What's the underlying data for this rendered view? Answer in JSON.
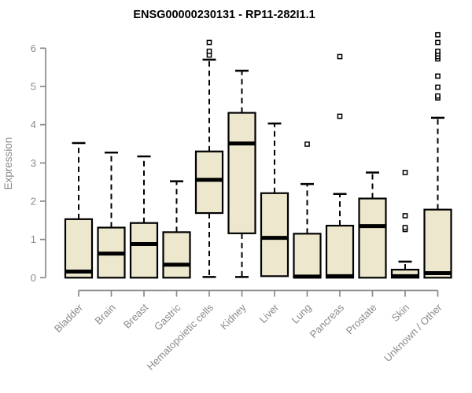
{
  "chart_data": {
    "type": "boxplot",
    "title": "ENSG00000230131 - RP11-282I1.1",
    "ylabel": "Expression",
    "xlabel": "",
    "ylim": [
      0,
      6
    ],
    "yticks": [
      0,
      1,
      2,
      3,
      4,
      5,
      6
    ],
    "grid": false,
    "legend": "none",
    "categories": [
      "Bladder",
      "Brain",
      "Breast",
      "Gastric",
      "Hematopoietic cells",
      "Kidney",
      "Liver",
      "Lung",
      "Pancreas",
      "Prostate",
      "Skin",
      "Unknown / Other"
    ],
    "boxes": [
      {
        "category": "Bladder",
        "whisker_low": 0.0,
        "q1": 0.0,
        "median": 0.16,
        "q3": 1.53,
        "whisker_high": 3.52,
        "outliers": []
      },
      {
        "category": "Brain",
        "whisker_low": 0.0,
        "q1": 0.0,
        "median": 0.63,
        "q3": 1.31,
        "whisker_high": 3.27,
        "outliers": []
      },
      {
        "category": "Breast",
        "whisker_low": 0.0,
        "q1": 0.0,
        "median": 0.88,
        "q3": 1.43,
        "whisker_high": 3.17,
        "outliers": []
      },
      {
        "category": "Gastric",
        "whisker_low": 0.0,
        "q1": 0.0,
        "median": 0.34,
        "q3": 1.19,
        "whisker_high": 2.52,
        "outliers": []
      },
      {
        "category": "Hematopoietic cells",
        "whisker_low": 0.02,
        "q1": 1.69,
        "median": 2.56,
        "q3": 3.3,
        "whisker_high": 5.7,
        "outliers": [
          5.82,
          5.92,
          6.15
        ]
      },
      {
        "category": "Kidney",
        "whisker_low": 0.02,
        "q1": 1.16,
        "median": 3.51,
        "q3": 4.31,
        "whisker_high": 5.41,
        "outliers": []
      },
      {
        "category": "Liver",
        "whisker_low": 0.04,
        "q1": 0.04,
        "median": 1.04,
        "q3": 2.21,
        "whisker_high": 4.03,
        "outliers": []
      },
      {
        "category": "Lung",
        "whisker_low": 0.0,
        "q1": 0.0,
        "median": 0.03,
        "q3": 1.15,
        "whisker_high": 2.45,
        "outliers": [
          3.49
        ]
      },
      {
        "category": "Pancreas",
        "whisker_low": 0.0,
        "q1": 0.0,
        "median": 0.04,
        "q3": 1.36,
        "whisker_high": 2.19,
        "outliers": [
          4.22,
          5.78
        ]
      },
      {
        "category": "Prostate",
        "whisker_low": 0.0,
        "q1": 0.0,
        "median": 1.35,
        "q3": 2.07,
        "whisker_high": 2.75,
        "outliers": []
      },
      {
        "category": "Skin",
        "whisker_low": 0.0,
        "q1": 0.0,
        "median": 0.04,
        "q3": 0.21,
        "whisker_high": 0.42,
        "outliers": [
          1.26,
          1.31,
          1.62,
          2.75
        ]
      },
      {
        "category": "Unknown / Other",
        "whisker_low": 0.0,
        "q1": 0.0,
        "median": 0.12,
        "q3": 1.78,
        "whisker_high": 4.18,
        "outliers": [
          4.7,
          4.75,
          4.98,
          5.27,
          5.72,
          5.78,
          5.85,
          5.92,
          6.15,
          6.35
        ]
      }
    ],
    "colors": {
      "box_fill": "#EDE8CD",
      "box_stroke": "#000000",
      "median": "#000000",
      "whisker": "#000000",
      "outlier_stroke": "#000000",
      "outlier_fill": "#ffffff",
      "axis": "#8a8a8a",
      "tick_label": "#8a8a8a",
      "title": "#000000",
      "background": "#ffffff"
    }
  }
}
